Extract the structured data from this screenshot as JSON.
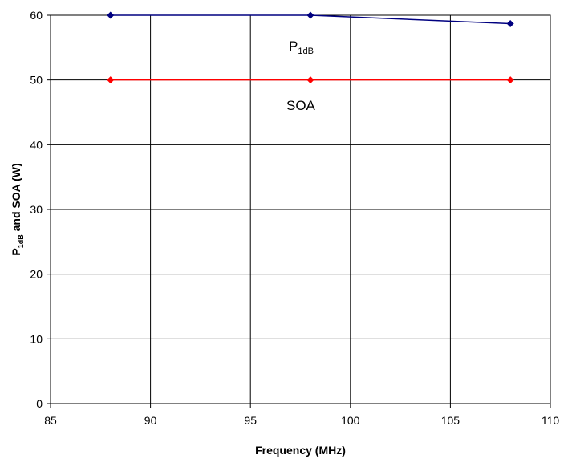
{
  "chart_data": {
    "type": "line",
    "xlabel": "Frequency (MHz)",
    "ylabel": {
      "main": "P",
      "sub": "1dB",
      "rest": " and SOA (W)"
    },
    "xlim": [
      85,
      110
    ],
    "ylim": [
      0,
      60
    ],
    "xticks": [
      85,
      90,
      95,
      100,
      105,
      110
    ],
    "yticks": [
      0,
      10,
      20,
      30,
      40,
      50,
      60
    ],
    "grid": true,
    "series": [
      {
        "name": "P1dB",
        "label_main": "P",
        "label_sub": "1dB",
        "color": "#000080",
        "x": [
          88,
          98,
          108
        ],
        "y": [
          60,
          60,
          58.7
        ]
      },
      {
        "name": "SOA",
        "label_main": "SOA",
        "label_sub": "",
        "color": "#ff0000",
        "x": [
          88,
          98,
          108
        ],
        "y": [
          50,
          50,
          50
        ]
      }
    ]
  }
}
